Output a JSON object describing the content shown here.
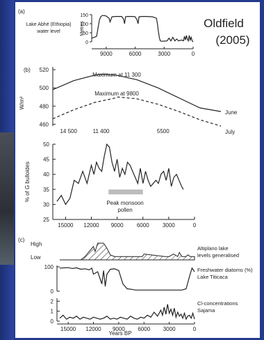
{
  "header": {
    "credit_line1": "Oldfield",
    "credit_line2": "(2005)"
  },
  "chart_data": [
    {
      "type": "line",
      "panel": "(a)",
      "label_line1": "Lake Abhé (Ethiopia)",
      "label_line2": "water level",
      "ylabel": "Metres",
      "xlim": [
        10500,
        0
      ],
      "ylim": [
        0,
        150
      ],
      "xticks": [
        9000,
        6000,
        3000,
        0
      ],
      "yticks": [
        150,
        100,
        50,
        0
      ],
      "series": [
        {
          "x": [
            10500,
            10000,
            9700,
            9550,
            9400,
            9200,
            9000,
            8700,
            8600,
            8400,
            8000,
            7400,
            7200,
            7100,
            7000,
            6800,
            6300,
            6000,
            5800,
            5700,
            5600,
            5300,
            4800,
            4200,
            3800,
            3700,
            3600,
            3500,
            3400,
            3300,
            3000,
            2700,
            2500,
            2300,
            2100,
            1900,
            1700,
            1500,
            1200,
            1000,
            900,
            800,
            700,
            600,
            500,
            400,
            300,
            200,
            100,
            0
          ],
          "y": [
            20,
            30,
            120,
            140,
            145,
            145,
            142,
            130,
            110,
            138,
            140,
            140,
            125,
            100,
            138,
            140,
            140,
            138,
            120,
            100,
            138,
            140,
            140,
            138,
            130,
            100,
            60,
            25,
            5,
            3,
            4,
            5,
            20,
            5,
            25,
            5,
            15,
            5,
            10,
            5,
            30,
            10,
            35,
            15,
            5,
            35,
            10,
            25,
            5,
            0
          ]
        }
      ]
    },
    {
      "type": "line",
      "panel": "(b)",
      "ylabel": "W/m²",
      "ylim": [
        458,
        520
      ],
      "yticks": [
        520,
        500,
        480,
        460
      ],
      "xlim": [
        16000,
        0
      ],
      "xticks_text": [
        "14 500",
        "11 400",
        "5500"
      ],
      "xticks_pos": [
        14500,
        11400,
        5500
      ],
      "annotations": [
        "Maximum at 11 300",
        "Maximum at 9800"
      ],
      "series": [
        {
          "name": "June",
          "x": [
            16000,
            14000,
            12000,
            11300,
            10000,
            8000,
            6000,
            4000,
            2000,
            0
          ],
          "y": [
            498,
            508,
            514,
            515,
            514,
            509,
            500,
            489,
            478,
            474
          ]
        },
        {
          "name": "July",
          "x": [
            16000,
            14000,
            12000,
            10000,
            9800,
            8000,
            6000,
            4000,
            2000,
            0
          ],
          "y": [
            466,
            476,
            484,
            489,
            490,
            488,
            482,
            474,
            465,
            458
          ]
        }
      ]
    },
    {
      "type": "line",
      "ylabel": "% of G bulloides",
      "ylim": [
        25,
        50
      ],
      "yticks": [
        50,
        45,
        40,
        35,
        30,
        25
      ],
      "xlim": [
        16000,
        0
      ],
      "xticks": [
        15000,
        12000,
        9000,
        6000,
        3000,
        0
      ],
      "annotations": [
        "Peak monsoon",
        "pollen"
      ],
      "peak_band": [
        10000,
        6000
      ],
      "series": [
        {
          "x": [
            16000,
            15500,
            15000,
            14500,
            14000,
            13500,
            13000,
            12500,
            12000,
            11700,
            11400,
            11100,
            10800,
            10500,
            10200,
            9900,
            9600,
            9300,
            9000,
            8700,
            8400,
            8100,
            7800,
            7500,
            7200,
            6900,
            6600,
            6300,
            6000,
            5700,
            5400,
            5100,
            4800,
            4500,
            4200,
            3900,
            3600,
            3300,
            3000,
            2700,
            2400,
            2100,
            1800,
            1500,
            1300
          ],
          "y": [
            31,
            33,
            30,
            32,
            38,
            37,
            41,
            37,
            43,
            40,
            44,
            42,
            41,
            46,
            50,
            49,
            44,
            41,
            45,
            39,
            42,
            40,
            44,
            43,
            41,
            39,
            37,
            42,
            37,
            41,
            38,
            36,
            37,
            38,
            37,
            40,
            41,
            38,
            42,
            36,
            39,
            40,
            38,
            36,
            35
          ]
        }
      ]
    },
    {
      "type": "area",
      "panel": "(c)",
      "ylabel_high": "High",
      "ylabel_low": "Low",
      "label_line1": "Altiplano lake",
      "label_line2": "levels generalised",
      "xlim": [
        16000,
        0
      ],
      "series": [
        {
          "x": [
            16000,
            13500,
            13000,
            12500,
            12000,
            11800,
            11500,
            10800,
            10400,
            10000,
            9500,
            7500,
            6200,
            6000,
            3500,
            3000,
            2500,
            2000,
            1800,
            1500,
            1000,
            800,
            500,
            0
          ],
          "y": [
            0,
            0,
            0.2,
            0.5,
            0.8,
            0.5,
            1,
            1,
            0.7,
            0.3,
            0.2,
            0.2,
            0.2,
            0.35,
            0.2,
            0.2,
            0.35,
            0.2,
            0.45,
            0.2,
            0.2,
            0.3,
            0.2,
            0.2
          ]
        }
      ]
    },
    {
      "type": "line",
      "label_line1": "Freshwater diatoms (%)",
      "label_line2": "Lake Titicaca",
      "ylim": [
        0,
        100
      ],
      "yticks": [
        100,
        0
      ],
      "xlim": [
        16000,
        0
      ],
      "series": [
        {
          "x": [
            16000,
            15000,
            14500,
            14000,
            13500,
            13000,
            12500,
            12200,
            12000,
            11500,
            11000,
            10800,
            10600,
            10400,
            10000,
            9500,
            9000,
            8500,
            8000,
            7500,
            7000,
            6500,
            6000,
            5000,
            4000,
            3000,
            2500,
            2000,
            1500,
            1000,
            600,
            300,
            0
          ],
          "y": [
            95,
            97,
            93,
            96,
            90,
            92,
            88,
            95,
            70,
            80,
            30,
            85,
            20,
            70,
            90,
            92,
            85,
            30,
            10,
            8,
            5,
            5,
            5,
            5,
            5,
            5,
            5,
            5,
            5,
            10,
            60,
            95,
            80
          ]
        }
      ]
    },
    {
      "type": "line",
      "label_line1": "Cl-concentrations",
      "label_line2": "Sajama",
      "ylim": [
        0,
        2.3
      ],
      "yticks": [
        2,
        1,
        0
      ],
      "xlim": [
        16000,
        0
      ],
      "xticks": [
        15000,
        12000,
        9000,
        6000,
        3000,
        0
      ],
      "xlabel": "Years BP",
      "series": [
        {
          "x": [
            16000,
            15600,
            15200,
            14800,
            14400,
            14000,
            13600,
            13200,
            12800,
            12400,
            12000,
            11600,
            11200,
            10800,
            10400,
            10000,
            9600,
            9200,
            8800,
            8400,
            8000,
            7600,
            7200,
            6800,
            6400,
            6000,
            5600,
            5200,
            4800,
            4400,
            4000,
            3800,
            3600,
            3400,
            3200,
            3000,
            2800,
            2600,
            2400,
            2200,
            2000,
            1800,
            1600,
            1400,
            1200,
            1000,
            800,
            600,
            400,
            200,
            0
          ],
          "y": [
            0.3,
            0.6,
            0.2,
            0.4,
            0.3,
            0.5,
            0.2,
            0.4,
            0.3,
            0.2,
            0.4,
            0.3,
            0.2,
            0.3,
            0.5,
            0.2,
            0.3,
            0.2,
            0.4,
            0.3,
            0.2,
            0.5,
            0.3,
            0.2,
            0.4,
            0.3,
            0.6,
            0.4,
            0.9,
            0.5,
            1.1,
            0.6,
            1.4,
            0.7,
            1.7,
            0.8,
            1.2,
            0.6,
            1.3,
            0.4,
            0.9,
            0.5,
            0.7,
            0.3,
            0.8,
            0.2,
            0.5,
            0.6,
            0.3,
            0.8,
            0.2
          ]
        }
      ]
    }
  ]
}
